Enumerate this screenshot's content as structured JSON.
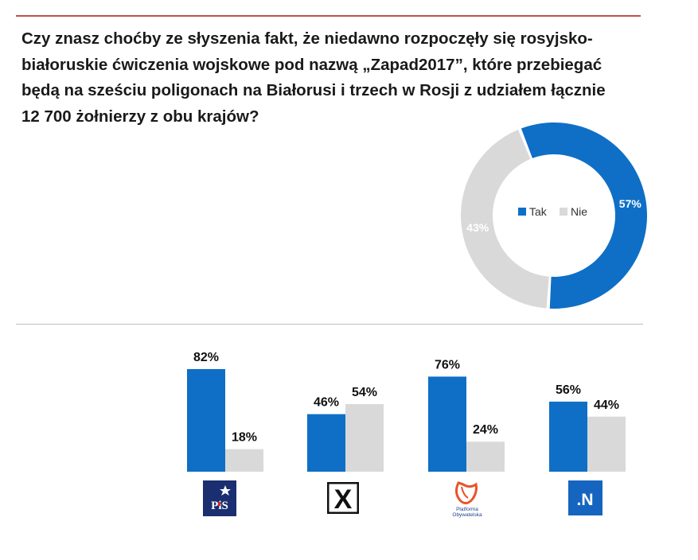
{
  "question": "Czy znasz choćby ze słyszenia fakt, że niedawno rozpoczęły się rosyjsko-białoruskie ćwiczenia wojskowe pod nazwą „Zapad2017”,  które przebiegać będą na sześciu poligonach na Białorusi i trzech w Rosji z udziałem łącznie 12 700 żołnierzy z obu krajów?",
  "colors": {
    "tak": "#0f6fc6",
    "nie": "#d9d9d9",
    "rule": "#c0504d"
  },
  "chart_data": [
    {
      "type": "pie",
      "variant": "donut",
      "title": "",
      "labels": [
        "Tak",
        "Nie"
      ],
      "values": [
        57,
        43
      ],
      "value_labels": [
        "57%",
        "43%"
      ],
      "legend": [
        {
          "name": "Tak",
          "color": "#0f6fc6"
        },
        {
          "name": "Nie",
          "color": "#d9d9d9"
        }
      ],
      "legend_position": "center"
    },
    {
      "type": "bar",
      "categories": [
        "PiS",
        "Kukiz'15",
        "Platforma Obywatelska",
        "Nowoczesna"
      ],
      "series": [
        {
          "name": "Tak",
          "values": [
            82,
            46,
            76,
            56
          ],
          "labels": [
            "82%",
            "46%",
            "76%",
            "56%"
          ]
        },
        {
          "name": "Nie",
          "values": [
            18,
            54,
            24,
            44
          ],
          "labels": [
            "18%",
            "54%",
            "24%",
            "44%"
          ]
        }
      ],
      "ylim": [
        0,
        100
      ],
      "grid": false,
      "xlabel": "",
      "ylabel": ""
    }
  ],
  "logos": {
    "pis": "PiS",
    "kukiz": "X",
    "po_line1": "Platforma",
    "po_line2": "Obywatelska",
    "nowoczesna": ".N"
  }
}
